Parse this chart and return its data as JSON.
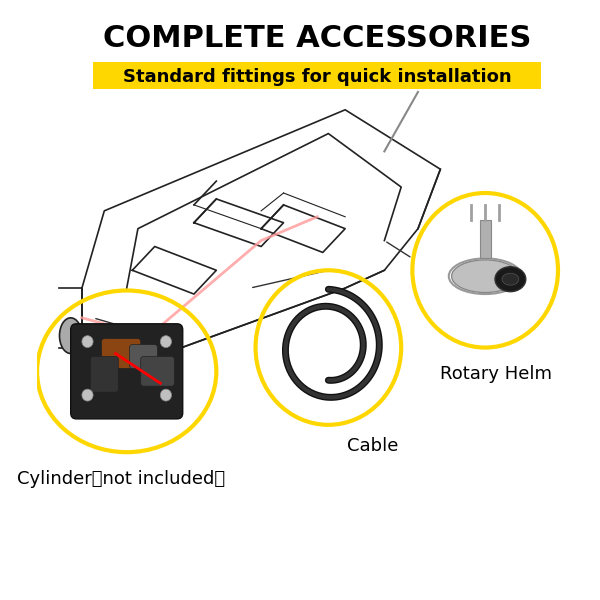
{
  "title": "COMPLETE ACCESSORIES",
  "subtitle": "Standard fittings for quick installation",
  "subtitle_bg": "#FFD700",
  "title_color": "#000000",
  "subtitle_color": "#000000",
  "bg_color": "#FFFFFF",
  "circle_color": "#FFD700",
  "circle_linewidth": 3,
  "labels": {
    "rotary_helm": "Rotary Helm",
    "cable": "Cable",
    "cylinder": "Cylinder（not included）"
  },
  "label_fontsize": 13,
  "title_fontsize": 22,
  "subtitle_fontsize": 13,
  "rotary_helm_circle": [
    0.8,
    0.55,
    0.13
  ],
  "cable_circle": [
    0.52,
    0.42,
    0.13
  ],
  "cylinder_circle": [
    0.16,
    0.38,
    0.16
  ]
}
